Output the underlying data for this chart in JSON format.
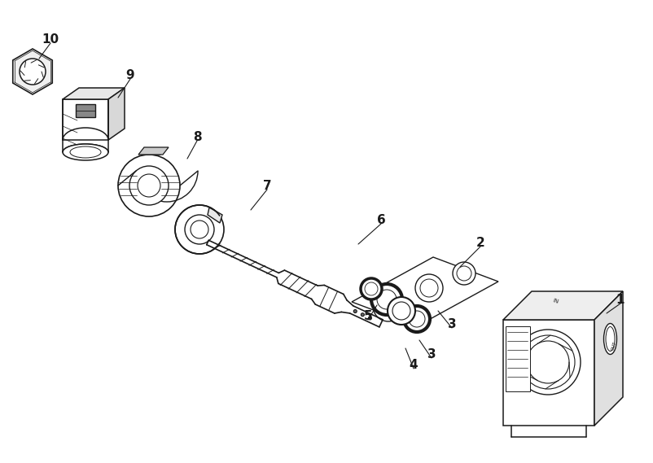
{
  "background_color": "#ffffff",
  "line_color": "#1a1a1a",
  "figure_width": 8.02,
  "figure_height": 5.69,
  "dpi": 100,
  "label_data": [
    [
      "1",
      762,
      368,
      745,
      385
    ],
    [
      "2",
      590,
      298,
      565,
      328
    ],
    [
      "3",
      555,
      398,
      538,
      382
    ],
    [
      "3",
      530,
      435,
      515,
      418
    ],
    [
      "4",
      508,
      448,
      498,
      428
    ],
    [
      "5",
      452,
      388,
      463,
      375
    ],
    [
      "6",
      468,
      270,
      440,
      300
    ],
    [
      "7",
      328,
      228,
      308,
      258
    ],
    [
      "8",
      242,
      168,
      230,
      195
    ],
    [
      "9",
      160,
      92,
      145,
      120
    ],
    [
      "10",
      62,
      48,
      48,
      72
    ]
  ]
}
